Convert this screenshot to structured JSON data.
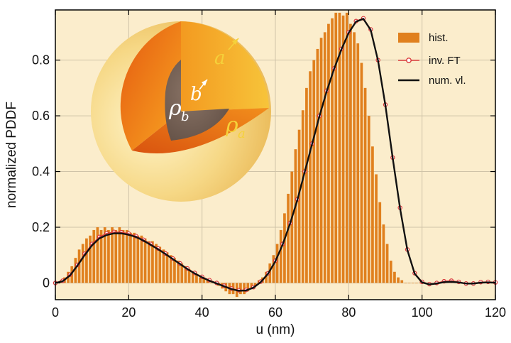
{
  "chart_data": {
    "type": "bar",
    "xlabel": "u (nm)",
    "ylabel": "normalized PDDF",
    "xlim": [
      0,
      120
    ],
    "ylim": [
      -0.06,
      0.98
    ],
    "xticks": [
      "0",
      "20",
      "40",
      "60",
      "80",
      "100",
      "120"
    ],
    "yticks": [
      "0",
      "0.2",
      "0.4",
      "0.6",
      "0.8"
    ],
    "grid": true,
    "legend_position": "top-right",
    "series": [
      {
        "name": "hist.",
        "kind": "histogram",
        "color": "#e0801e",
        "x": [
          1,
          2,
          3,
          4,
          5,
          6,
          7,
          8,
          9,
          10,
          11,
          12,
          13,
          14,
          15,
          16,
          17,
          18,
          19,
          20,
          21,
          22,
          23,
          24,
          25,
          26,
          27,
          28,
          29,
          30,
          31,
          32,
          33,
          34,
          35,
          36,
          37,
          38,
          39,
          40,
          41,
          42,
          43,
          44,
          45,
          46,
          47,
          48,
          49,
          50,
          51,
          52,
          53,
          54,
          55,
          56,
          57,
          58,
          59,
          60,
          61,
          62,
          63,
          64,
          65,
          66,
          67,
          68,
          69,
          70,
          71,
          72,
          73,
          74,
          75,
          76,
          77,
          78,
          79,
          80,
          81,
          82,
          83,
          84,
          85,
          86,
          87,
          88,
          89,
          90,
          91,
          92,
          93,
          94,
          95,
          96,
          97,
          98,
          99,
          100
        ],
        "values": [
          0.0,
          0.01,
          0.02,
          0.04,
          0.06,
          0.09,
          0.12,
          0.14,
          0.16,
          0.17,
          0.19,
          0.2,
          0.19,
          0.2,
          0.19,
          0.2,
          0.19,
          0.2,
          0.19,
          0.19,
          0.18,
          0.18,
          0.17,
          0.17,
          0.16,
          0.15,
          0.15,
          0.14,
          0.13,
          0.12,
          0.11,
          0.1,
          0.09,
          0.08,
          0.07,
          0.06,
          0.05,
          0.04,
          0.03,
          0.02,
          0.02,
          0.01,
          0.0,
          0.0,
          -0.01,
          -0.02,
          -0.03,
          -0.04,
          -0.04,
          -0.05,
          -0.04,
          -0.04,
          -0.03,
          -0.02,
          -0.01,
          0.01,
          0.02,
          0.04,
          0.07,
          0.1,
          0.14,
          0.19,
          0.25,
          0.32,
          0.4,
          0.48,
          0.55,
          0.62,
          0.7,
          0.76,
          0.8,
          0.84,
          0.88,
          0.9,
          0.93,
          0.95,
          0.97,
          0.97,
          0.96,
          0.97,
          0.93,
          0.9,
          0.86,
          0.79,
          0.7,
          0.6,
          0.49,
          0.39,
          0.29,
          0.21,
          0.14,
          0.08,
          0.04,
          0.02,
          0.01,
          0.0,
          0.0,
          0.0,
          0.0,
          0.0
        ]
      },
      {
        "name": "inv. FT",
        "kind": "line-markers",
        "color": "#d93a3a",
        "x": [
          0,
          2,
          4,
          6,
          8,
          10,
          12,
          14,
          16,
          18,
          20,
          22,
          24,
          26,
          28,
          30,
          32,
          34,
          36,
          38,
          40,
          42,
          44,
          46,
          48,
          50,
          52,
          54,
          56,
          58,
          60,
          62,
          64,
          66,
          68,
          70,
          72,
          74,
          76,
          78,
          80,
          82,
          84,
          86,
          88,
          90,
          92,
          94,
          96,
          98,
          100,
          102,
          104,
          106,
          108,
          110,
          112,
          114,
          116,
          118,
          120
        ],
        "values": [
          0.0,
          0.008,
          0.03,
          0.065,
          0.105,
          0.14,
          0.165,
          0.178,
          0.183,
          0.182,
          0.177,
          0.168,
          0.155,
          0.14,
          0.124,
          0.106,
          0.088,
          0.07,
          0.052,
          0.036,
          0.022,
          0.01,
          0.0,
          -0.01,
          -0.02,
          -0.026,
          -0.025,
          -0.015,
          0.005,
          0.035,
          0.08,
          0.14,
          0.215,
          0.3,
          0.4,
          0.5,
          0.6,
          0.69,
          0.77,
          0.84,
          0.9,
          0.94,
          0.95,
          0.91,
          0.8,
          0.64,
          0.45,
          0.27,
          0.12,
          0.035,
          0.004,
          -0.004,
          0.0,
          0.006,
          0.008,
          0.004,
          -0.002,
          -0.002,
          0.003,
          0.004,
          0.002
        ]
      },
      {
        "name": "num. vl.",
        "kind": "line",
        "color": "#111111",
        "x": [
          0,
          2,
          4,
          6,
          8,
          10,
          12,
          14,
          16,
          18,
          20,
          22,
          24,
          26,
          28,
          30,
          32,
          34,
          36,
          38,
          40,
          42,
          44,
          46,
          48,
          50,
          52,
          54,
          56,
          58,
          60,
          62,
          64,
          66,
          68,
          70,
          72,
          74,
          76,
          78,
          80,
          82,
          84,
          86,
          88,
          90,
          92,
          94,
          96,
          98,
          100,
          102,
          104,
          106,
          108,
          110,
          112,
          114,
          116,
          118,
          120
        ],
        "values": [
          0.0,
          0.006,
          0.027,
          0.062,
          0.1,
          0.135,
          0.16,
          0.172,
          0.178,
          0.178,
          0.173,
          0.165,
          0.152,
          0.137,
          0.121,
          0.104,
          0.086,
          0.068,
          0.05,
          0.034,
          0.02,
          0.008,
          -0.002,
          -0.012,
          -0.022,
          -0.028,
          -0.027,
          -0.017,
          0.003,
          0.033,
          0.078,
          0.138,
          0.213,
          0.298,
          0.398,
          0.498,
          0.598,
          0.688,
          0.768,
          0.838,
          0.898,
          0.938,
          0.948,
          0.908,
          0.798,
          0.638,
          0.448,
          0.268,
          0.118,
          0.033,
          0.002,
          -0.005,
          -0.002,
          0.003,
          0.004,
          0.002,
          -0.002,
          -0.002,
          0.001,
          0.002,
          0.001
        ]
      }
    ],
    "inset": {
      "labels": {
        "a_radius": "a",
        "b_radius": "b",
        "rho_b": "ρ",
        "rho_b_sub": "b",
        "rho_a": "ρ",
        "rho_a_sub": "a"
      },
      "colors": {
        "outer_shell": "#f3d27a",
        "cut_outer": "#f08a18",
        "cut_inner": "#e86f14",
        "core": "#7a6558",
        "label_yellow": "#f5d13a"
      }
    },
    "colors": {
      "plot_background": "#fbedcc",
      "grid": "#cfc3a8",
      "frame": "#000000"
    }
  }
}
